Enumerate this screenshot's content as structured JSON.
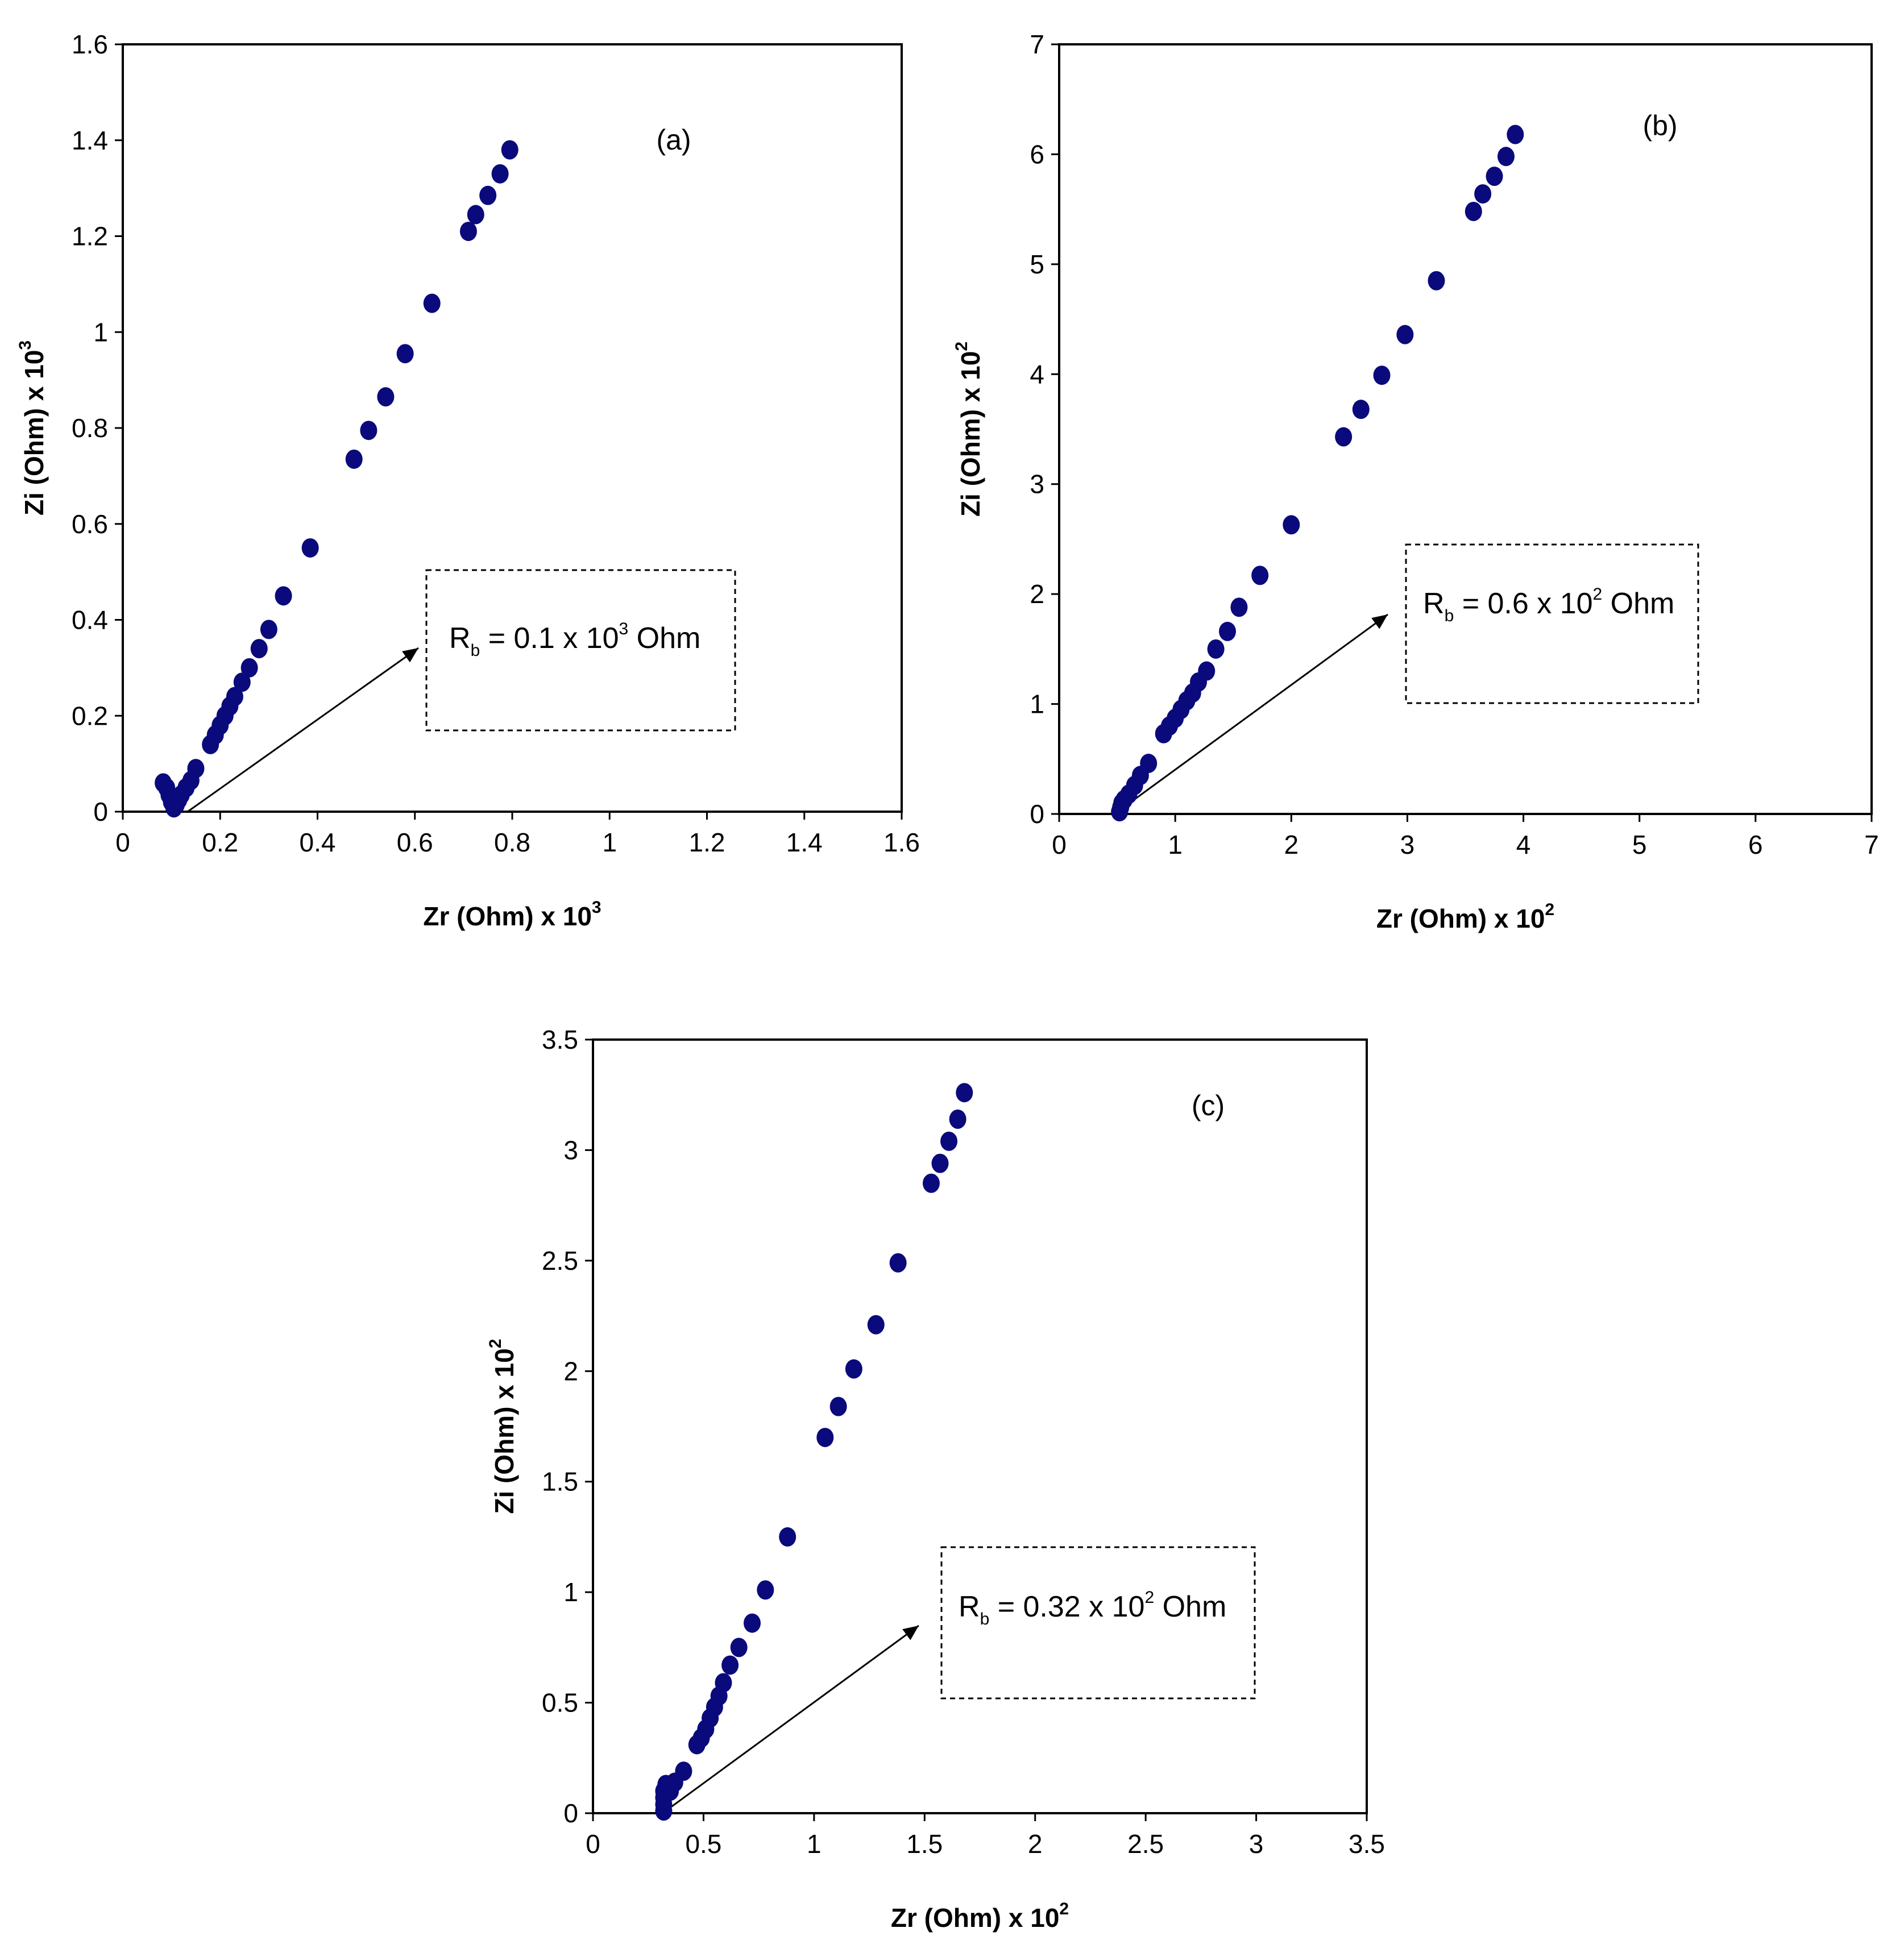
{
  "colors": {
    "marker": "#0a0a7c",
    "axis": "#000000",
    "background": "#ffffff"
  },
  "chart_data": [
    {
      "type": "scatter",
      "panel_label": "(a)",
      "xlabel": "Zr (Ohm) x 10",
      "xlabel_exp": "3",
      "ylabel": "Zi (Ohm) x 10",
      "ylabel_exp": "3",
      "xlim": [
        0,
        1.6
      ],
      "ylim": [
        0,
        1.6
      ],
      "xticks": [
        "0",
        "0.2",
        "0.4",
        "0.6",
        "0.8",
        "1",
        "1.2",
        "1.4",
        "1.6"
      ],
      "yticks": [
        "0",
        "0.2",
        "0.4",
        "0.6",
        "0.8",
        "1",
        "1.2",
        "1.4",
        "1.6"
      ],
      "grid": false,
      "annotation": {
        "prefix": "R",
        "sub": "b",
        "text": " = 0.1 x 10",
        "exp": "3",
        "suffix": " Ohm"
      },
      "series": [
        {
          "points": [
            [
              0.083,
              0.06
            ],
            [
              0.09,
              0.05
            ],
            [
              0.095,
              0.035
            ],
            [
              0.1,
              0.02
            ],
            [
              0.105,
              0.008
            ],
            [
              0.11,
              0.015
            ],
            [
              0.115,
              0.025
            ],
            [
              0.12,
              0.035
            ],
            [
              0.13,
              0.05
            ],
            [
              0.14,
              0.065
            ],
            [
              0.15,
              0.09
            ],
            [
              0.18,
              0.14
            ],
            [
              0.19,
              0.16
            ],
            [
              0.2,
              0.18
            ],
            [
              0.21,
              0.2
            ],
            [
              0.22,
              0.22
            ],
            [
              0.23,
              0.24
            ],
            [
              0.245,
              0.27
            ],
            [
              0.26,
              0.3
            ],
            [
              0.28,
              0.34
            ],
            [
              0.3,
              0.38
            ],
            [
              0.33,
              0.45
            ],
            [
              0.385,
              0.55
            ],
            [
              0.475,
              0.735
            ],
            [
              0.505,
              0.795
            ],
            [
              0.54,
              0.865
            ],
            [
              0.58,
              0.955
            ],
            [
              0.635,
              1.06
            ],
            [
              0.71,
              1.21
            ],
            [
              0.725,
              1.245
            ],
            [
              0.75,
              1.285
            ],
            [
              0.775,
              1.33
            ],
            [
              0.795,
              1.38
            ]
          ]
        }
      ]
    },
    {
      "type": "scatter",
      "panel_label": "(b)",
      "xlabel": "Zr (Ohm) x 10",
      "xlabel_exp": "2",
      "ylabel": "Zi (Ohm) x 10",
      "ylabel_exp": "2",
      "xlim": [
        0,
        7
      ],
      "ylim": [
        0,
        7
      ],
      "xticks": [
        "0",
        "1",
        "2",
        "3",
        "4",
        "5",
        "6",
        "7"
      ],
      "yticks": [
        "0",
        "1",
        "2",
        "3",
        "4",
        "5",
        "6",
        "7"
      ],
      "grid": false,
      "annotation": {
        "prefix": "R",
        "sub": "b",
        "text": " = 0.6 x 10",
        "exp": "2",
        "suffix": " Ohm"
      },
      "series": [
        {
          "points": [
            [
              0.52,
              0.02
            ],
            [
              0.53,
              0.06
            ],
            [
              0.54,
              0.1
            ],
            [
              0.56,
              0.13
            ],
            [
              0.6,
              0.18
            ],
            [
              0.65,
              0.26
            ],
            [
              0.7,
              0.35
            ],
            [
              0.77,
              0.46
            ],
            [
              0.9,
              0.73
            ],
            [
              0.95,
              0.8
            ],
            [
              1.0,
              0.87
            ],
            [
              1.05,
              0.95
            ],
            [
              1.1,
              1.03
            ],
            [
              1.15,
              1.1
            ],
            [
              1.2,
              1.2
            ],
            [
              1.27,
              1.3
            ],
            [
              1.35,
              1.5
            ],
            [
              1.45,
              1.66
            ],
            [
              1.55,
              1.88
            ],
            [
              1.73,
              2.17
            ],
            [
              2.0,
              2.63
            ],
            [
              2.45,
              3.43
            ],
            [
              2.6,
              3.68
            ],
            [
              2.78,
              3.99
            ],
            [
              2.98,
              4.36
            ],
            [
              3.25,
              4.85
            ],
            [
              3.57,
              5.48
            ],
            [
              3.65,
              5.64
            ],
            [
              3.75,
              5.8
            ],
            [
              3.85,
              5.98
            ],
            [
              3.93,
              6.18
            ]
          ]
        }
      ]
    },
    {
      "type": "scatter",
      "panel_label": "(c)",
      "xlabel": "Zr (Ohm) x 10",
      "xlabel_exp": "2",
      "ylabel": "Zi (Ohm) x 10",
      "ylabel_exp": "2",
      "xlim": [
        0,
        3.5
      ],
      "ylim": [
        0,
        3.5
      ],
      "xticks": [
        "0",
        "0.5",
        "1",
        "1.5",
        "2",
        "2.5",
        "3",
        "3.5"
      ],
      "yticks": [
        "0",
        "0.5",
        "1",
        "1.5",
        "2",
        "2.5",
        "3",
        "3.5"
      ],
      "grid": false,
      "annotation": {
        "prefix": "R",
        "sub": "b",
        "text": " = 0.32 x 10",
        "exp": "2",
        "suffix": " Ohm"
      },
      "series": [
        {
          "points": [
            [
              0.32,
              0.01
            ],
            [
              0.32,
              0.04
            ],
            [
              0.32,
              0.07
            ],
            [
              0.32,
              0.1
            ],
            [
              0.33,
              0.13
            ],
            [
              0.35,
              0.1
            ],
            [
              0.37,
              0.14
            ],
            [
              0.41,
              0.19
            ],
            [
              0.47,
              0.31
            ],
            [
              0.49,
              0.34
            ],
            [
              0.51,
              0.38
            ],
            [
              0.53,
              0.43
            ],
            [
              0.55,
              0.48
            ],
            [
              0.57,
              0.53
            ],
            [
              0.59,
              0.59
            ],
            [
              0.62,
              0.67
            ],
            [
              0.66,
              0.75
            ],
            [
              0.72,
              0.86
            ],
            [
              0.78,
              1.01
            ],
            [
              0.88,
              1.25
            ],
            [
              1.05,
              1.7
            ],
            [
              1.11,
              1.84
            ],
            [
              1.18,
              2.01
            ],
            [
              1.28,
              2.21
            ],
            [
              1.38,
              2.49
            ],
            [
              1.53,
              2.85
            ],
            [
              1.57,
              2.94
            ],
            [
              1.61,
              3.04
            ],
            [
              1.65,
              3.14
            ],
            [
              1.68,
              3.26
            ]
          ]
        }
      ]
    }
  ]
}
